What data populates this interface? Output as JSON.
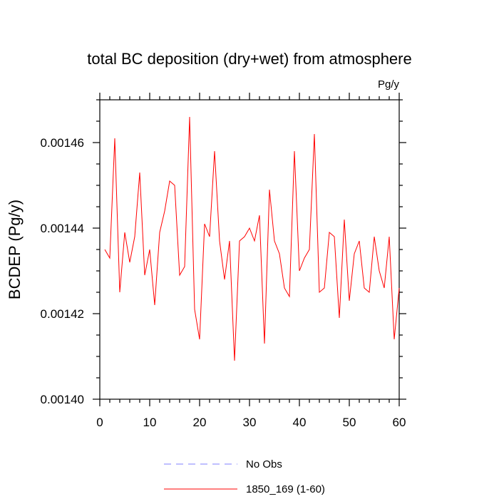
{
  "chart_data": {
    "type": "line",
    "title": "total BC deposition (dry+wet) from atmosphere",
    "units": "Pg/y",
    "ylabel": "BCDEP  (Pg/y)",
    "xlabel": "",
    "xlim": [
      0,
      60
    ],
    "ylim": [
      0.0014,
      0.00147
    ],
    "x_ticks": [
      0,
      10,
      20,
      30,
      40,
      50,
      60
    ],
    "x_tick_labels": [
      "0",
      "10",
      "20",
      "30",
      "40",
      "50",
      "60"
    ],
    "y_ticks": [
      0.0014,
      0.00142,
      0.00144,
      0.00146
    ],
    "y_tick_labels": [
      "0.00140",
      "0.00142",
      "0.00144",
      "0.00146"
    ],
    "grid": false,
    "legend_position": "bottom",
    "legend": [
      {
        "label": "No Obs",
        "color": "#8080ff",
        "style": "dashed"
      },
      {
        "label": "1850_169 (1-60)",
        "color": "#ff0000",
        "style": "solid"
      }
    ],
    "series": [
      {
        "name": "1850_169 (1-60)",
        "color": "#ff0000",
        "x": [
          1,
          2,
          3,
          4,
          5,
          6,
          7,
          8,
          9,
          10,
          11,
          12,
          13,
          14,
          15,
          16,
          17,
          18,
          19,
          20,
          21,
          22,
          23,
          24,
          25,
          26,
          27,
          28,
          29,
          30,
          31,
          32,
          33,
          34,
          35,
          36,
          37,
          38,
          39,
          40,
          41,
          42,
          43,
          44,
          45,
          46,
          47,
          48,
          49,
          50,
          51,
          52,
          53,
          54,
          55,
          56,
          57,
          58,
          59,
          60
        ],
        "values": [
          0.001435,
          0.001433,
          0.001461,
          0.001425,
          0.001439,
          0.001432,
          0.001438,
          0.001453,
          0.001429,
          0.001435,
          0.001422,
          0.001439,
          0.001444,
          0.001451,
          0.00145,
          0.001429,
          0.001431,
          0.001466,
          0.001421,
          0.001414,
          0.001441,
          0.001438,
          0.001458,
          0.001437,
          0.001428,
          0.001437,
          0.001409,
          0.001437,
          0.001438,
          0.00144,
          0.001437,
          0.001443,
          0.001413,
          0.001449,
          0.001437,
          0.001434,
          0.001426,
          0.001424,
          0.001458,
          0.00143,
          0.001433,
          0.001435,
          0.001462,
          0.001425,
          0.001426,
          0.001439,
          0.001438,
          0.001419,
          0.001442,
          0.001423,
          0.001434,
          0.001437,
          0.001426,
          0.001425,
          0.001438,
          0.00143,
          0.001426,
          0.001438,
          0.001414,
          0.001426
        ]
      }
    ]
  }
}
